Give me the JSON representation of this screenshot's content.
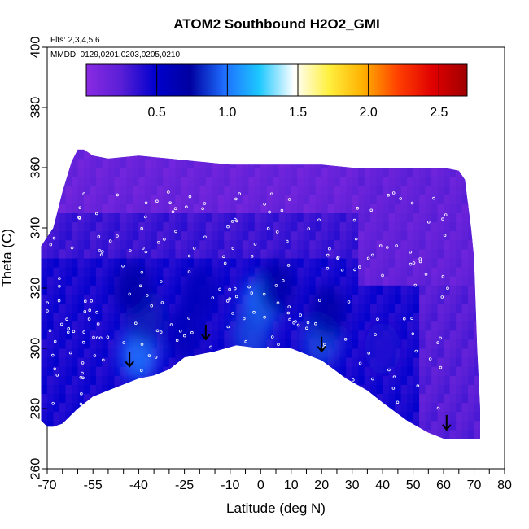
{
  "chart_data": {
    "type": "heatmap",
    "title": "ATOM2 Southbound H2O2_GMI",
    "flights_note": "Flts: 2,3,4,5,6",
    "dates_note": "MMDD: 0129,0201,0203,0205,0210",
    "xlabel": "Latitude (deg N)",
    "ylabel": "Theta (C)",
    "xlim": [
      -70,
      80
    ],
    "ylim": [
      260,
      400
    ],
    "x_tick_labels": [
      "-70",
      "-55",
      "-40",
      "-25",
      "-10",
      "0",
      "10",
      "20",
      "30",
      "40",
      "50",
      "60",
      "70",
      "80"
    ],
    "x_tick_values": [
      -70,
      -55,
      -40,
      -25,
      -10,
      0,
      10,
      20,
      30,
      40,
      50,
      60,
      70,
      80
    ],
    "x_minor_ticks": [
      -65,
      -60,
      -50,
      -45,
      -35,
      -30,
      -20,
      -15,
      -5,
      5,
      15,
      25,
      35,
      45,
      55,
      65,
      75
    ],
    "y_tick_labels": [
      "260",
      "280",
      "300",
      "320",
      "340",
      "360",
      "380",
      "400"
    ],
    "y_tick_values": [
      260,
      280,
      300,
      320,
      340,
      360,
      380,
      400
    ],
    "colorbar": {
      "ticks": [
        0.5,
        1.0,
        1.5,
        2.0,
        2.5
      ],
      "tick_labels": [
        "0.5",
        "1.0",
        "1.5",
        "2.0",
        "2.5"
      ],
      "range": [
        0,
        2.7
      ],
      "colors": [
        "#8a2be2",
        "#5a1fd6",
        "#0000cd",
        "#0000a0",
        "#1e6fff",
        "#1ec8ff",
        "#ffffff",
        "#fff040",
        "#ffb000",
        "#ff4000",
        "#e00000",
        "#a00000"
      ]
    },
    "field_description": "curtain of H2O2 mixing ratio; mostly 0.1-0.5, enhanced 0.8-1.1 in lower troposphere near lat -40, 0 and 20",
    "boundary_upper": [
      [
        -72,
        334
      ],
      [
        -68,
        340
      ],
      [
        -65,
        352
      ],
      [
        -62,
        362
      ],
      [
        -60,
        366
      ],
      [
        -58,
        366
      ],
      [
        -55,
        364
      ],
      [
        -50,
        363
      ],
      [
        -40,
        364
      ],
      [
        -30,
        363
      ],
      [
        -20,
        362
      ],
      [
        -10,
        361
      ],
      [
        0,
        361
      ],
      [
        10,
        361
      ],
      [
        20,
        361
      ],
      [
        30,
        360
      ],
      [
        40,
        360
      ],
      [
        50,
        360
      ],
      [
        60,
        360
      ],
      [
        65,
        359
      ],
      [
        67,
        356
      ],
      [
        69,
        340
      ],
      [
        70,
        330
      ],
      [
        71,
        300
      ],
      [
        72,
        280
      ],
      [
        72,
        270
      ]
    ],
    "boundary_lower": [
      [
        72,
        270
      ],
      [
        60,
        270
      ],
      [
        55,
        272
      ],
      [
        48,
        276
      ],
      [
        40,
        282
      ],
      [
        35,
        286
      ],
      [
        28,
        290
      ],
      [
        20,
        296
      ],
      [
        10,
        300
      ],
      [
        0,
        300
      ],
      [
        -8,
        301
      ],
      [
        -15,
        299
      ],
      [
        -25,
        297
      ],
      [
        -30,
        293
      ],
      [
        -35,
        291
      ],
      [
        -40,
        290
      ],
      [
        -45,
        288
      ],
      [
        -50,
        286
      ],
      [
        -55,
        284
      ],
      [
        -60,
        280
      ],
      [
        -65,
        275
      ],
      [
        -68,
        274
      ],
      [
        -70,
        274
      ],
      [
        -72,
        276
      ],
      [
        -72,
        334
      ]
    ],
    "hotspots": [
      {
        "lat": -40,
        "theta": 298,
        "value": 1.0
      },
      {
        "lat": -38,
        "theta": 310,
        "value": 0.8
      },
      {
        "lat": -42,
        "theta": 320,
        "value": 0.7
      },
      {
        "lat": 0,
        "theta": 315,
        "value": 1.0
      },
      {
        "lat": -3,
        "theta": 305,
        "value": 0.9
      },
      {
        "lat": 5,
        "theta": 320,
        "value": 0.7
      },
      {
        "lat": 20,
        "theta": 303,
        "value": 0.9
      },
      {
        "lat": 22,
        "theta": 312,
        "value": 0.7
      },
      {
        "lat": -20,
        "theta": 318,
        "value": 0.6
      },
      {
        "lat": -25,
        "theta": 305,
        "value": 0.6
      },
      {
        "lat": 40,
        "theta": 300,
        "value": 0.4
      }
    ],
    "takeoff_markers": [
      {
        "lat": -43,
        "theta": 294
      },
      {
        "lat": -18,
        "theta": 303
      },
      {
        "lat": 20,
        "theta": 299
      },
      {
        "lat": 61,
        "theta": 273
      }
    ]
  }
}
